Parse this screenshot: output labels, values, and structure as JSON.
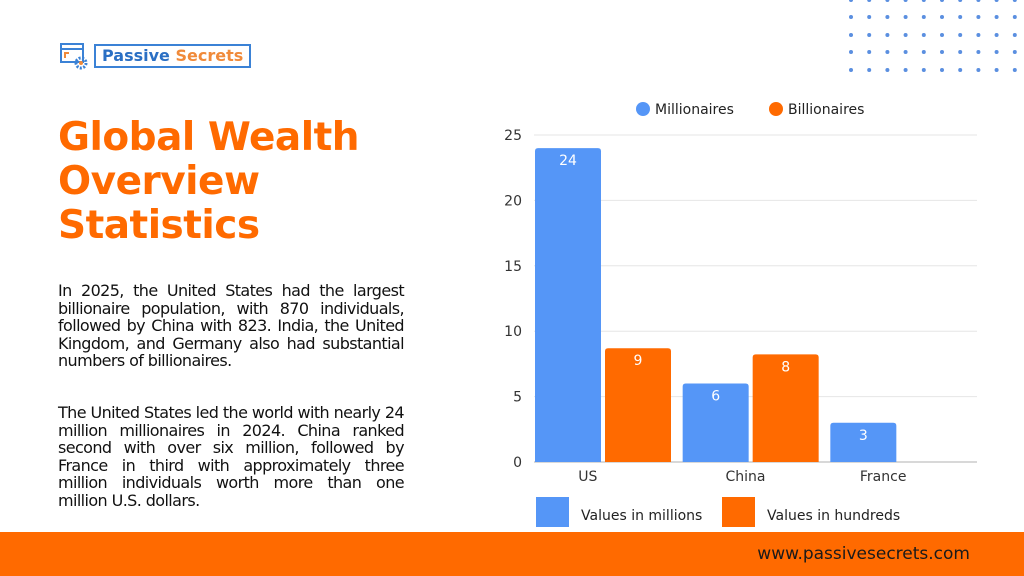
{
  "brand": {
    "name_part1": "Passive",
    "name_part2": "Secrets",
    "accent": "#ff6a00",
    "blue": "#5596f7"
  },
  "title": "Global Wealth Overview Statistics",
  "paragraphs": [
    "In 2025, the United States had the largest billionaire population, with 870 individuals, followed by China with 823. India, the United Kingdom, and Germany also had substantial numbers of billionaires.",
    "The United States led the world with nearly 24 million millionaires in 2024. China ranked second with over six million, followed by France in third with approximately three million individuals worth more than one million U.S. dollars."
  ],
  "footer": {
    "url": "www.passivesecrets.com"
  },
  "chart_data": {
    "type": "bar",
    "categories": [
      "US",
      "China",
      "France"
    ],
    "series": [
      {
        "name": "Millionaires",
        "values": [
          24,
          6,
          3
        ],
        "labels": [
          "24",
          "6",
          "3"
        ],
        "color": "#5596f7"
      },
      {
        "name": "Billionaires",
        "values": [
          8.7,
          8.23,
          null
        ],
        "labels": [
          "9",
          "8",
          ""
        ],
        "color": "#ff6a00"
      }
    ],
    "ylim": [
      0,
      25
    ],
    "yticks": [
      0,
      5,
      10,
      15,
      20,
      25
    ],
    "grid": true,
    "legend_position": "top",
    "notes": [
      {
        "text": "Values in millions",
        "color": "#5596f7"
      },
      {
        "text": "Values in hundreds",
        "color": "#ff6a00"
      }
    ]
  }
}
